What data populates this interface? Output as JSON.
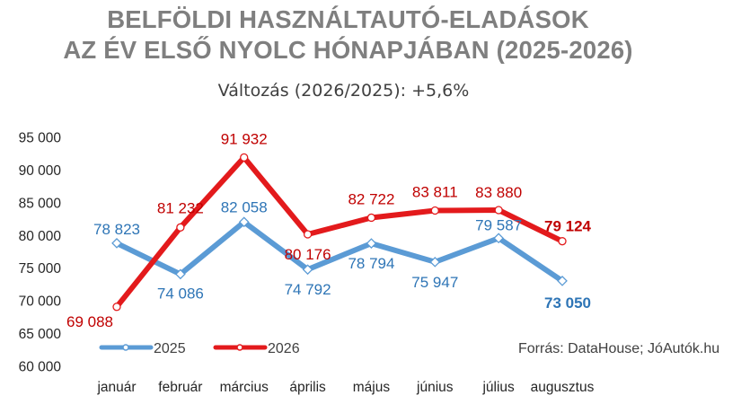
{
  "title_line1": "BELFÖLDI HASZNÁLTAUTÓ-ELADÁSOK",
  "title_line2": "AZ ÉV ELSŐ NYOLC HÓNAPJÁBAN (2025-2026)",
  "subtitle": "Változás (2026/2025): +5,6%",
  "source": "Forrás: DataHouse; JóAutók.hu",
  "colors": {
    "s2025": "#5b9bd5",
    "s2026": "#e31a1c",
    "label2025": "#2e75b6",
    "label2026": "#c00000"
  },
  "chart_data": {
    "type": "line",
    "title": "BELFÖLDI HASZNÁLTAUTÓ-ELADÁSOK AZ ÉV ELSŐ NYOLC HÓNAPJÁBAN (2025-2026)",
    "subtitle": "Változás (2026/2025): +5,6%",
    "categories": [
      "január",
      "február",
      "március",
      "április",
      "május",
      "június",
      "július",
      "augusztus"
    ],
    "series": [
      {
        "name": "2025",
        "values": [
          78823,
          74086,
          82058,
          74792,
          78794,
          75947,
          79587,
          73050
        ],
        "labels": [
          "78 823",
          "74 086",
          "82 058",
          "74 792",
          "78 794",
          "75 947",
          "79 587",
          "73 050"
        ]
      },
      {
        "name": "2026",
        "values": [
          69088,
          81232,
          91932,
          80176,
          82722,
          83811,
          83880,
          79124
        ],
        "labels": [
          "69 088",
          "81 232",
          "91 932",
          "80 176",
          "82 722",
          "83 811",
          "83 880",
          "79 124"
        ]
      }
    ],
    "ylim": [
      60000,
      95000
    ],
    "yticks": [
      60000,
      65000,
      70000,
      75000,
      80000,
      85000,
      90000,
      95000
    ],
    "ytick_labels": [
      "60 000",
      "65 000",
      "70 000",
      "75 000",
      "80 000",
      "85 000",
      "90 000",
      "95 000"
    ],
    "legend": "bottom-left",
    "grid": false
  }
}
